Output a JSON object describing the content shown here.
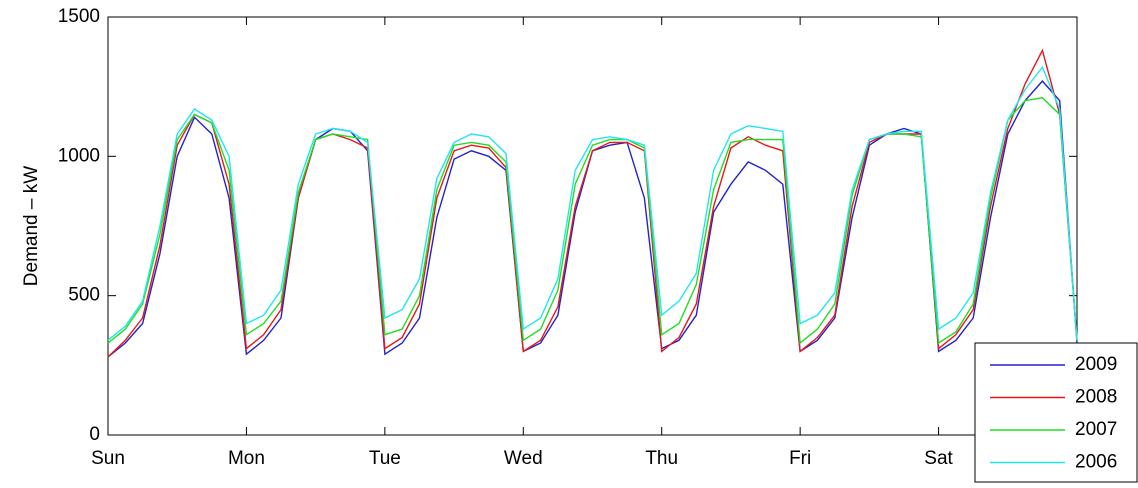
{
  "chart_data": {
    "type": "line",
    "ylabel": "Demand – kW",
    "x": [
      0,
      0.125,
      0.25,
      0.375,
      0.5,
      0.625,
      0.75,
      0.875,
      1,
      1.125,
      1.25,
      1.375,
      1.5,
      1.625,
      1.75,
      1.875,
      2,
      2.125,
      2.25,
      2.375,
      2.5,
      2.625,
      2.75,
      2.875,
      3,
      3.125,
      3.25,
      3.375,
      3.5,
      3.625,
      3.75,
      3.875,
      4,
      4.125,
      4.25,
      4.375,
      4.5,
      4.625,
      4.75,
      4.875,
      5,
      5.125,
      5.25,
      5.375,
      5.5,
      5.625,
      5.75,
      5.875,
      6,
      6.125,
      6.25,
      6.375,
      6.5,
      6.625,
      6.75,
      6.875,
      7
    ],
    "xlim": [
      0,
      7
    ],
    "xticks": [
      {
        "value": 0,
        "label": "Sun"
      },
      {
        "value": 1,
        "label": "Mon"
      },
      {
        "value": 2,
        "label": "Tue"
      },
      {
        "value": 3,
        "label": "Wed"
      },
      {
        "value": 4,
        "label": "Thu"
      },
      {
        "value": 5,
        "label": "Fri"
      },
      {
        "value": 6,
        "label": "Sat"
      }
    ],
    "ylim": [
      0,
      1500
    ],
    "yticks": [
      0,
      500,
      1000,
      1500
    ],
    "legend": "lower right",
    "series": [
      {
        "name": "2009",
        "color": "#2222cc",
        "values": [
          280,
          330,
          400,
          650,
          1000,
          1140,
          1080,
          850,
          290,
          340,
          420,
          850,
          1060,
          1100,
          1090,
          1020,
          290,
          330,
          420,
          780,
          990,
          1020,
          1000,
          950,
          300,
          330,
          430,
          800,
          1020,
          1040,
          1050,
          850,
          310,
          340,
          430,
          800,
          900,
          980,
          950,
          900,
          300,
          340,
          420,
          780,
          1040,
          1080,
          1100,
          1080,
          300,
          340,
          420,
          780,
          1080,
          1200,
          1270,
          1200,
          330
        ]
      },
      {
        "name": "2008",
        "color": "#e41a1a",
        "values": [
          280,
          340,
          420,
          680,
          1040,
          1150,
          1120,
          900,
          310,
          360,
          450,
          850,
          1060,
          1080,
          1060,
          1030,
          310,
          350,
          470,
          850,
          1020,
          1040,
          1030,
          960,
          300,
          340,
          460,
          820,
          1020,
          1050,
          1050,
          1020,
          300,
          350,
          470,
          820,
          1030,
          1070,
          1040,
          1020,
          300,
          350,
          430,
          820,
          1050,
          1080,
          1080,
          1080,
          310,
          360,
          450,
          820,
          1100,
          1260,
          1380,
          1150,
          340
        ]
      },
      {
        "name": "2007",
        "color": "#22dd22",
        "values": [
          330,
          380,
          470,
          720,
          1060,
          1150,
          1120,
          950,
          360,
          400,
          480,
          870,
          1060,
          1080,
          1070,
          1060,
          360,
          380,
          500,
          880,
          1040,
          1050,
          1040,
          980,
          340,
          380,
          520,
          900,
          1040,
          1060,
          1060,
          1030,
          360,
          400,
          540,
          880,
          1050,
          1060,
          1060,
          1060,
          330,
          380,
          470,
          860,
          1060,
          1080,
          1080,
          1070,
          330,
          370,
          470,
          850,
          1130,
          1200,
          1210,
          1150,
          340
        ]
      },
      {
        "name": "2006",
        "color": "#22e5ee",
        "values": [
          340,
          390,
          480,
          750,
          1080,
          1170,
          1130,
          1000,
          400,
          430,
          520,
          900,
          1080,
          1100,
          1090,
          1050,
          420,
          450,
          560,
          920,
          1050,
          1080,
          1070,
          1010,
          380,
          420,
          560,
          950,
          1060,
          1070,
          1060,
          1040,
          430,
          480,
          580,
          950,
          1080,
          1110,
          1100,
          1090,
          400,
          430,
          510,
          880,
          1060,
          1080,
          1090,
          1090,
          380,
          420,
          510,
          870,
          1130,
          1240,
          1320,
          1170,
          340
        ]
      }
    ]
  }
}
